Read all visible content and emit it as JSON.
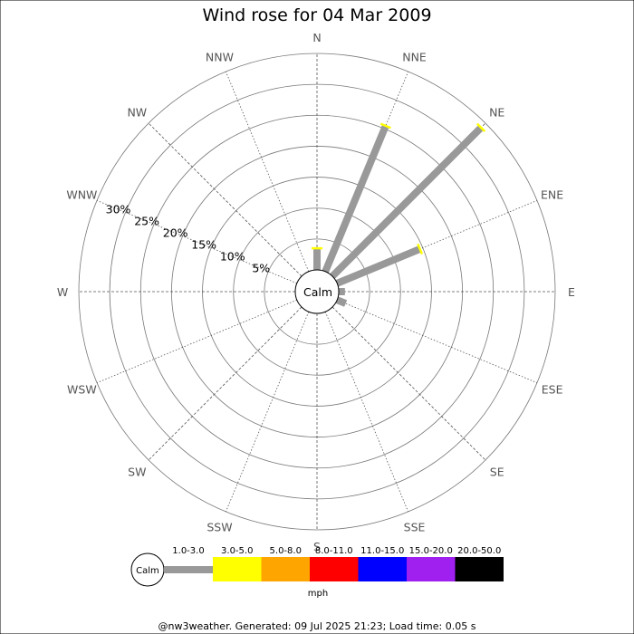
{
  "title": "Wind rose for 04 Mar 2009",
  "footer": "@nw3weather. Generated: 09 Jul 2025 21:23; Load time: 0.05 s",
  "calm_label": "Calm",
  "chart_data": {
    "type": "wind-rose",
    "title": "Wind rose for 04 Mar 2009",
    "directions": [
      "N",
      "NNE",
      "NE",
      "ENE",
      "E",
      "ESE",
      "SE",
      "SSE",
      "S",
      "SSW",
      "SW",
      "WSW",
      "W",
      "WNW",
      "NW",
      "NNW"
    ],
    "radial_ticks": [
      "5%",
      "10%",
      "15%",
      "20%",
      "25%",
      "30%"
    ],
    "radial_range": [
      0,
      35
    ],
    "calm_label": "Calm",
    "series": [
      {
        "name": "1.0-3.0",
        "color": "#999999",
        "values": [
          3.5,
          25.5,
          34,
          14.5,
          1,
          1.5,
          0,
          0,
          0,
          0,
          0,
          0,
          0,
          0,
          0,
          0
        ]
      }
    ],
    "max_speed_markers": {
      "color": "#ffff00",
      "values": [
        3.5,
        25.5,
        34,
        14.5,
        null,
        null,
        null,
        null,
        null,
        null,
        null,
        null,
        null,
        null,
        null,
        null
      ]
    },
    "legend": {
      "units": "mph",
      "items": [
        {
          "label": "1.0-3.0",
          "color": "#999999"
        },
        {
          "label": "3.0-5.0",
          "color": "#ffff00"
        },
        {
          "label": "5.0-8.0",
          "color": "#ffa500"
        },
        {
          "label": "8.0-11.0",
          "color": "#ff0000"
        },
        {
          "label": "11.0-15.0",
          "color": "#0000ff"
        },
        {
          "label": "15.0-20.0",
          "color": "#a020f0"
        },
        {
          "label": "20.0-50.0",
          "color": "#000000"
        }
      ]
    }
  }
}
